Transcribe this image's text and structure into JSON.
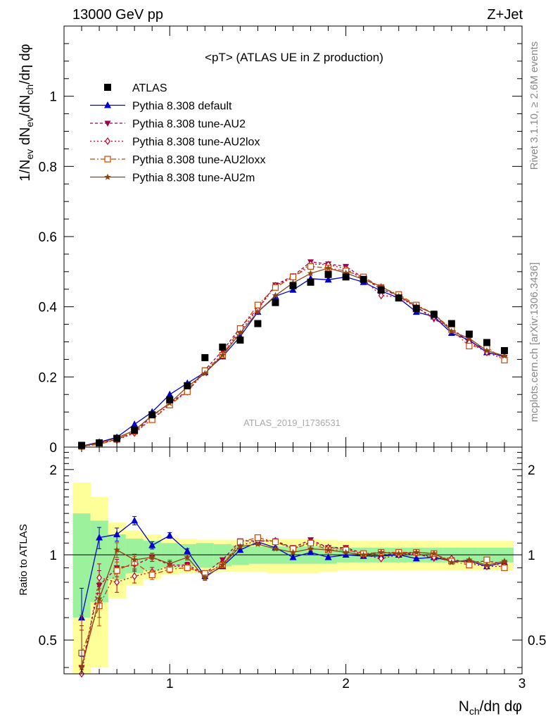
{
  "header": {
    "left": "13000 GeV pp",
    "right": "Z+Jet"
  },
  "side_labels": {
    "rivet": "Rivet 3.1.10, ≥ 2.6M events",
    "mcplots": "mcplots.cern.ch [arXiv:1306.3436]"
  },
  "chart_data": [
    {
      "type": "line",
      "title": "<pT> (ATLAS UE in Z production)",
      "xlabel": "N_ch/dη dφ",
      "ylabel": "1/N_ev dN_ev/dN_ch/dη dφ",
      "xlim": [
        0.4,
        3.0
      ],
      "ylim": [
        0,
        1.2
      ],
      "y_ticks": [
        "0",
        "0.2",
        "0.4",
        "0.6",
        "0.8",
        "1"
      ],
      "x_ticks": [
        "1",
        "2",
        "3"
      ],
      "watermark": "ATLAS_2019_I1736531",
      "legend_position": "top-left",
      "x": [
        0.5,
        0.6,
        0.7,
        0.8,
        0.9,
        1.0,
        1.1,
        1.2,
        1.3,
        1.4,
        1.5,
        1.6,
        1.7,
        1.8,
        1.9,
        2.0,
        2.1,
        2.2,
        2.3,
        2.4,
        2.5,
        2.6,
        2.7,
        2.8,
        2.9
      ],
      "series": [
        {
          "name": "ATLAS",
          "color": "#000000",
          "marker": "square",
          "values": [
            0.005,
            0.012,
            0.025,
            0.048,
            0.092,
            0.135,
            0.175,
            0.255,
            0.285,
            0.305,
            0.352,
            0.412,
            0.46,
            0.47,
            0.492,
            0.485,
            0.478,
            0.448,
            0.425,
            0.395,
            0.378,
            0.352,
            0.322,
            0.298,
            0.275
          ]
        },
        {
          "name": "Pythia 8.308 default",
          "color": "#0000cc",
          "marker": "triangle-up",
          "dash": "",
          "values": [
            0.003,
            0.014,
            0.028,
            0.065,
            0.1,
            0.15,
            0.182,
            0.213,
            0.258,
            0.315,
            0.385,
            0.43,
            0.448,
            0.48,
            0.477,
            0.485,
            0.47,
            0.445,
            0.425,
            0.385,
            0.372,
            0.325,
            0.305,
            0.27,
            0.258
          ]
        },
        {
          "name": "Pythia 8.308 tune-AU2",
          "color": "#a0004a",
          "marker": "triangle-down",
          "dash": "4,3",
          "values": [
            0.002,
            0.01,
            0.022,
            0.043,
            0.088,
            0.125,
            0.16,
            0.22,
            0.275,
            0.34,
            0.395,
            0.462,
            0.488,
            0.528,
            0.522,
            0.515,
            0.482,
            0.45,
            0.432,
            0.4,
            0.365,
            0.338,
            0.3,
            0.278,
            0.255
          ]
        },
        {
          "name": "Pythia 8.308 tune-AU2lox",
          "color": "#c0002a",
          "marker": "diamond-open",
          "dash": "2,3",
          "values": [
            0.002,
            0.01,
            0.02,
            0.04,
            0.08,
            0.122,
            0.158,
            0.215,
            0.265,
            0.33,
            0.392,
            0.46,
            0.485,
            0.522,
            0.52,
            0.508,
            0.478,
            0.432,
            0.428,
            0.398,
            0.37,
            0.34,
            0.298,
            0.27,
            0.25
          ]
        },
        {
          "name": "Pythia 8.308 tune-AU2loxx",
          "color": "#cc4400",
          "marker": "square-open",
          "dash": "7,3,2,3",
          "values": [
            0.002,
            0.008,
            0.022,
            0.045,
            0.078,
            0.12,
            0.158,
            0.218,
            0.262,
            0.338,
            0.405,
            0.455,
            0.485,
            0.515,
            0.51,
            0.502,
            0.485,
            0.455,
            0.435,
            0.405,
            0.38,
            0.335,
            0.288,
            0.285,
            0.248
          ]
        },
        {
          "name": "Pythia 8.308 tune-AU2m",
          "color": "#8b4513",
          "marker": "star",
          "dash": "",
          "values": [
            0.002,
            0.012,
            0.026,
            0.048,
            0.09,
            0.125,
            0.172,
            0.21,
            0.262,
            0.325,
            0.385,
            0.432,
            0.468,
            0.495,
            0.51,
            0.496,
            0.478,
            0.458,
            0.43,
            0.402,
            0.38,
            0.33,
            0.31,
            0.275,
            0.26
          ]
        }
      ]
    },
    {
      "type": "line",
      "ylabel": "Ratio to ATLAS",
      "xlabel": "N_ch/dη dφ",
      "xlim": [
        0.4,
        3.0
      ],
      "ylim": [
        0.38,
        2.4
      ],
      "log_y": true,
      "y_ticks": [
        "0.5",
        "1",
        "2"
      ],
      "x_ticks": [
        "1",
        "2",
        "3"
      ],
      "band_x_edges": [
        0.45,
        0.55,
        0.65,
        0.75,
        0.85,
        0.95,
        1.05,
        1.15,
        1.25,
        1.35,
        1.45,
        1.55,
        1.65,
        1.75,
        1.85,
        1.95,
        2.05,
        2.15,
        2.25,
        2.35,
        2.45,
        2.55,
        2.65,
        2.75,
        2.85,
        2.95
      ],
      "band_inner": [
        0.4,
        0.32,
        0.18,
        0.14,
        0.12,
        0.1,
        0.09,
        0.1,
        0.09,
        0.08,
        0.07,
        0.07,
        0.07,
        0.07,
        0.07,
        0.06,
        0.06,
        0.06,
        0.06,
        0.06,
        0.06,
        0.06,
        0.06,
        0.06,
        0.06
      ],
      "band_outer": [
        0.8,
        0.6,
        0.3,
        0.22,
        0.18,
        0.15,
        0.14,
        0.13,
        0.13,
        0.13,
        0.13,
        0.14,
        0.14,
        0.14,
        0.13,
        0.12,
        0.12,
        0.12,
        0.12,
        0.12,
        0.12,
        0.12,
        0.12,
        0.12,
        0.12
      ],
      "band_colors": {
        "inner": "#9cf29c",
        "outer": "#ffff99"
      },
      "series": [
        {
          "name": "Pythia 8.308 default",
          "values": [
            0.6,
            1.15,
            1.18,
            1.32,
            1.08,
            1.17,
            1.03,
            0.84,
            0.91,
            1.04,
            1.11,
            1.06,
            0.98,
            1.02,
            0.98,
            1.0,
            0.99,
            0.99,
            1.0,
            0.97,
            0.98,
            0.95,
            0.95,
            0.91,
            0.94
          ]
        },
        {
          "name": "Pythia 8.308 tune-AU2",
          "values": [
            0.4,
            0.78,
            0.9,
            0.92,
            0.98,
            0.92,
            0.92,
            0.86,
            0.96,
            1.12,
            1.12,
            1.12,
            1.06,
            1.13,
            1.06,
            1.06,
            1.01,
            1.0,
            1.01,
            1.01,
            0.97,
            0.96,
            0.94,
            0.95,
            0.93
          ]
        },
        {
          "name": "Pythia 8.308 tune-AU2lox",
          "values": [
            0.38,
            0.83,
            0.8,
            0.84,
            0.87,
            0.91,
            0.91,
            0.85,
            0.93,
            1.08,
            1.12,
            1.12,
            1.05,
            1.11,
            1.06,
            1.05,
            1.0,
            0.97,
            1.0,
            1.01,
            0.98,
            0.97,
            0.93,
            0.91,
            0.91
          ]
        },
        {
          "name": "Pythia 8.308 tune-AU2loxx",
          "values": [
            0.45,
            0.66,
            0.88,
            0.94,
            0.85,
            0.89,
            0.9,
            0.86,
            0.92,
            1.11,
            1.15,
            1.11,
            1.05,
            1.1,
            1.04,
            1.04,
            1.01,
            1.02,
            1.02,
            1.02,
            1.01,
            0.95,
            0.92,
            0.96,
            0.9
          ]
        },
        {
          "name": "Pythia 8.308 tune-AU2m",
          "values": [
            0.4,
            0.7,
            1.04,
            0.96,
            0.98,
            0.93,
            0.98,
            0.83,
            0.92,
            1.07,
            1.09,
            1.05,
            1.02,
            1.05,
            1.04,
            1.02,
            1.0,
            1.02,
            1.01,
            1.02,
            1.01,
            0.94,
            0.96,
            0.92,
            0.95
          ]
        }
      ]
    }
  ]
}
